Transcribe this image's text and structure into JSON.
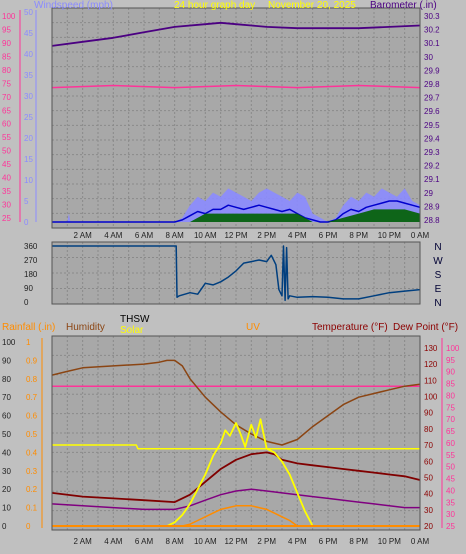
{
  "colors": {
    "background": "#c0c0c0",
    "plot_bg": "#a8a8a8",
    "grid": "#8a8a8a",
    "wind_speed": "#8b8bff",
    "wind_gust": "#0000cc",
    "wind_avg": "#006000",
    "barometer": "#4b0082",
    "outside_temp_line": "#ff3399",
    "wind_dir": "#003f7f",
    "rain": "#ff8c00",
    "humidity": "#8b4513",
    "thsw": "#800000",
    "solar": "#ffff00",
    "uv": "#ff8c00",
    "temperature": "#8b0000",
    "dew_point": "#ff3399",
    "heat_index": "#800080",
    "yellow_line": "#ffff00"
  },
  "chart_data": [
    {
      "type": "line",
      "title": "24 hour graph day  November 20, 2025",
      "title_parts": [
        "24 hour graph day",
        "November 20, 2025"
      ],
      "legend_left": "Windspeed (mph)",
      "legend_right": "Barometer (.in)",
      "x_ticks": [
        "2 AM",
        "4 AM",
        "6 AM",
        "8 AM",
        "10 AM",
        "12 PM",
        "2 PM",
        "4 PM",
        "6 PM",
        "8 PM",
        "10 PM",
        "0 AM"
      ],
      "x_hours_range": [
        0,
        24
      ],
      "left_ticks": [
        "100",
        "95",
        "90",
        "85",
        "80",
        "75",
        "70",
        "65",
        "60",
        "55",
        "50",
        "45",
        "40",
        "35",
        "30",
        "25"
      ],
      "inner_left_ticks": [
        "50",
        "45",
        "40",
        "35",
        "30",
        "25",
        "20",
        "15",
        "10",
        "5",
        "0"
      ],
      "ylim_left": [
        0,
        50
      ],
      "right_ticks": [
        "30.3",
        "30.2",
        "30.1",
        "30",
        "29.9",
        "29.8",
        "29.7",
        "29.6",
        "29.5",
        "29.4",
        "29.3",
        "29.2",
        "29.1",
        "29",
        "28.9",
        "28.8"
      ],
      "ylim_right": [
        28.75,
        30.35
      ],
      "series": [
        {
          "name": "Barometer",
          "axis": "right",
          "x": [
            0,
            2,
            4,
            6,
            8,
            10,
            11,
            12,
            13,
            14,
            16,
            18,
            20,
            22,
            24
          ],
          "y": [
            30.08,
            30.11,
            30.14,
            30.18,
            30.22,
            30.24,
            30.25,
            30.24,
            30.23,
            30.22,
            30.21,
            30.21,
            30.21,
            30.22,
            30.23
          ]
        },
        {
          "axis": "left",
          "x": [
            0,
            4,
            8,
            12,
            16,
            20,
            24
          ],
          "y": [
            32,
            32.5,
            32,
            32.5,
            32,
            32.5,
            32
          ]
        },
        {
          "name": "Windspeed",
          "axis": "left",
          "x": [
            0,
            1,
            1.1,
            1.2,
            8,
            8.5,
            9,
            9.5,
            10,
            10.5,
            11,
            11.5,
            12,
            12.5,
            13,
            13.5,
            14,
            14.5,
            15,
            15.5,
            16,
            16.5,
            17,
            17.5,
            18,
            18.5,
            19,
            19.5,
            20,
            20.5,
            21,
            21.5,
            22,
            22.5,
            23,
            23.5,
            24
          ],
          "y": [
            0,
            0,
            2,
            0,
            0,
            1,
            4,
            6,
            5,
            7,
            6,
            8,
            7,
            6,
            5,
            7,
            8,
            7,
            6,
            5,
            7,
            6,
            2,
            1,
            0,
            1,
            4,
            6,
            5,
            7,
            6,
            8,
            7,
            6,
            8,
            5,
            4
          ]
        },
        {
          "axis": "left",
          "x": [
            0,
            8,
            8.5,
            9,
            9.5,
            10,
            10.5,
            11,
            11.5,
            12,
            12.5,
            13,
            13.5,
            14,
            14.5,
            15,
            15.5,
            16,
            16.5,
            17,
            17.5,
            18,
            18.5,
            19,
            19.5,
            20,
            20.5,
            21,
            21.5,
            22,
            22.5,
            23,
            23.5,
            24
          ],
          "y": [
            0,
            0,
            0.5,
            1.5,
            2.5,
            2,
            3,
            3,
            4,
            3.5,
            3,
            3.5,
            4,
            3.5,
            3,
            2.5,
            3,
            2,
            1,
            0.5,
            0,
            0,
            0.5,
            2,
            3,
            2.5,
            3.5,
            4,
            4.5,
            5,
            5,
            4.5,
            4,
            3.5
          ]
        },
        {
          "axis": "left",
          "x": [
            0,
            9,
            10,
            11,
            12,
            13,
            14,
            15,
            16,
            17,
            18,
            19,
            20,
            21,
            22,
            23,
            24
          ],
          "y": [
            0,
            0,
            2,
            2,
            2,
            2,
            2,
            2,
            2,
            0,
            0,
            1,
            2,
            3,
            3,
            3,
            2
          ]
        }
      ]
    },
    {
      "type": "line",
      "title": "",
      "left_ticks": [
        "360",
        "270",
        "180",
        "90",
        "0"
      ],
      "ylim": [
        0,
        360
      ],
      "right_labels": [
        "N",
        "W",
        "S",
        "E",
        "N"
      ],
      "series": [
        {
          "name": "Wind Direction",
          "x": [
            0,
            8,
            8.1,
            8.15,
            8.3,
            9,
            9.5,
            10,
            10.5,
            11,
            11.5,
            12,
            12.5,
            13,
            13.5,
            14,
            14.3,
            14.6,
            14.8,
            15,
            15.1,
            15.2,
            15.3,
            15.4,
            15.5,
            16,
            17,
            18,
            19,
            20,
            21,
            22,
            23,
            24
          ],
          "y": [
            360,
            360,
            360,
            30,
            40,
            60,
            50,
            120,
            110,
            130,
            160,
            200,
            250,
            260,
            270,
            260,
            300,
            240,
            80,
            40,
            360,
            10,
            350,
            20,
            40,
            30,
            35,
            30,
            20,
            20,
            40,
            60,
            70,
            80
          ]
        }
      ]
    },
    {
      "type": "line",
      "title": "",
      "legend_labels": [
        "Rainfall (.in)",
        "Humidity",
        "THSW",
        "Solar",
        "UV",
        "Temperature (°F)",
        "Dew Point (°F)"
      ],
      "x_ticks": [
        "2 AM",
        "4 AM",
        "6 AM",
        "8 AM",
        "10 AM",
        "12 PM",
        "2 PM",
        "4 PM",
        "6 PM",
        "8 PM",
        "10 PM",
        "0 AM"
      ],
      "x_hours_range": [
        0,
        24
      ],
      "axis_left_outer": [
        "100",
        "90",
        "80",
        "70",
        "60",
        "50",
        "40",
        "30",
        "20",
        "10",
        "0"
      ],
      "axis_left_rain": [
        "1",
        "0.9",
        "0.8",
        "0.7",
        "0.6",
        "0.5",
        "0.4",
        "0.3",
        "0.2",
        "0.1",
        "0"
      ],
      "axis_right_temp": [
        "130",
        "120",
        "110",
        "100",
        "90",
        "80",
        "70",
        "60",
        "50",
        "40",
        "30",
        "20"
      ],
      "axis_right_dew": [
        "100",
        "95",
        "90",
        "85",
        "80",
        "75",
        "70",
        "65",
        "60",
        "55",
        "50",
        "45",
        "40",
        "35",
        "30",
        "25"
      ],
      "ylim_percent": [
        0,
        100
      ],
      "series": [
        {
          "name": "Humidity",
          "x": [
            0,
            1,
            2,
            4,
            6,
            7,
            7.5,
            8,
            8.5,
            9,
            10,
            11,
            12,
            13,
            14,
            15,
            16,
            17,
            18,
            19,
            20,
            21,
            22,
            23,
            24
          ],
          "y": [
            82,
            84,
            86,
            87,
            88,
            89,
            90,
            90,
            87,
            80,
            70,
            62,
            55,
            50,
            46,
            44,
            47,
            54,
            60,
            66,
            70,
            72,
            74,
            76,
            77
          ]
        },
        {
          "name": "THSW",
          "x": [
            0,
            2,
            4,
            6,
            8,
            9,
            10,
            11,
            12,
            13,
            14,
            14.5,
            15,
            16,
            17,
            18,
            19,
            20,
            21,
            22,
            23,
            24
          ],
          "y": [
            18,
            16,
            15,
            14,
            13,
            17,
            24,
            31,
            36,
            39,
            40,
            39,
            36,
            34,
            33,
            32,
            31,
            30,
            29,
            28,
            27,
            25
          ]
        },
        {
          "name": "Temperature",
          "x": [
            0,
            2,
            4,
            6,
            8,
            9,
            10,
            11,
            12,
            13,
            14,
            15,
            16,
            17,
            18,
            19,
            20,
            21,
            22,
            23,
            24
          ],
          "y": [
            12,
            11,
            10,
            9,
            9,
            11,
            14,
            17,
            19,
            20,
            19,
            18,
            17,
            16,
            15,
            14,
            13,
            12,
            11,
            10,
            10
          ]
        },
        {
          "name": "Solar",
          "x": [
            0,
            7.5,
            8,
            8.5,
            9,
            9.5,
            10,
            10.5,
            11,
            11.3,
            11.6,
            12,
            12.3,
            12.6,
            13,
            13.3,
            13.6,
            14,
            14.5,
            15,
            15.5,
            16,
            16.5,
            17,
            24
          ],
          "y": [
            0,
            0,
            2,
            6,
            12,
            20,
            28,
            38,
            45,
            52,
            49,
            56,
            50,
            43,
            55,
            48,
            58,
            42,
            40,
            35,
            28,
            18,
            8,
            0,
            0
          ]
        },
        {
          "name": "UV",
          "x": [
            0,
            8.5,
            9,
            9.5,
            10,
            10.5,
            11,
            11.5,
            12,
            12.5,
            13,
            13.5,
            14,
            14.5,
            15,
            15.5,
            16,
            24
          ],
          "y": [
            0,
            0,
            1,
            3,
            5,
            7,
            9,
            10,
            11,
            11,
            11,
            10,
            9,
            7,
            5,
            3,
            0,
            0
          ]
        },
        {
          "name": "Dew Point",
          "x": [
            0,
            4,
            8,
            12,
            16,
            20,
            24
          ],
          "y": [
            76,
            76,
            76,
            76,
            76,
            76,
            76
          ]
        },
        {
          "x": [
            0,
            5.5,
            5.6,
            24
          ],
          "y": [
            44,
            44,
            42,
            42
          ]
        },
        {
          "name": "Rainfall",
          "x": [
            0,
            24
          ],
          "y": [
            0,
            0
          ]
        }
      ]
    }
  ]
}
